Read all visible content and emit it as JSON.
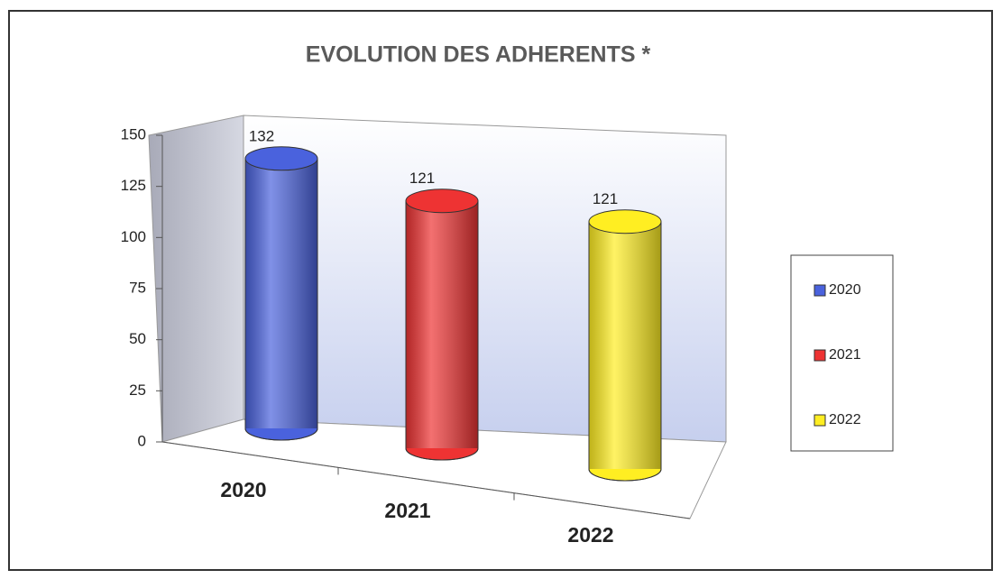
{
  "chart_data": {
    "type": "bar3d",
    "title": "EVOLUTION DES ADHERENTS *",
    "categories": [
      "2020",
      "2021",
      "2022"
    ],
    "values": [
      132,
      121,
      121
    ],
    "colors": [
      "#4a62dd",
      "#ee3333",
      "#ffee22"
    ],
    "ylim": [
      0,
      150
    ],
    "yticks": [
      0,
      25,
      50,
      75,
      100,
      125,
      150
    ],
    "legend": "right"
  }
}
